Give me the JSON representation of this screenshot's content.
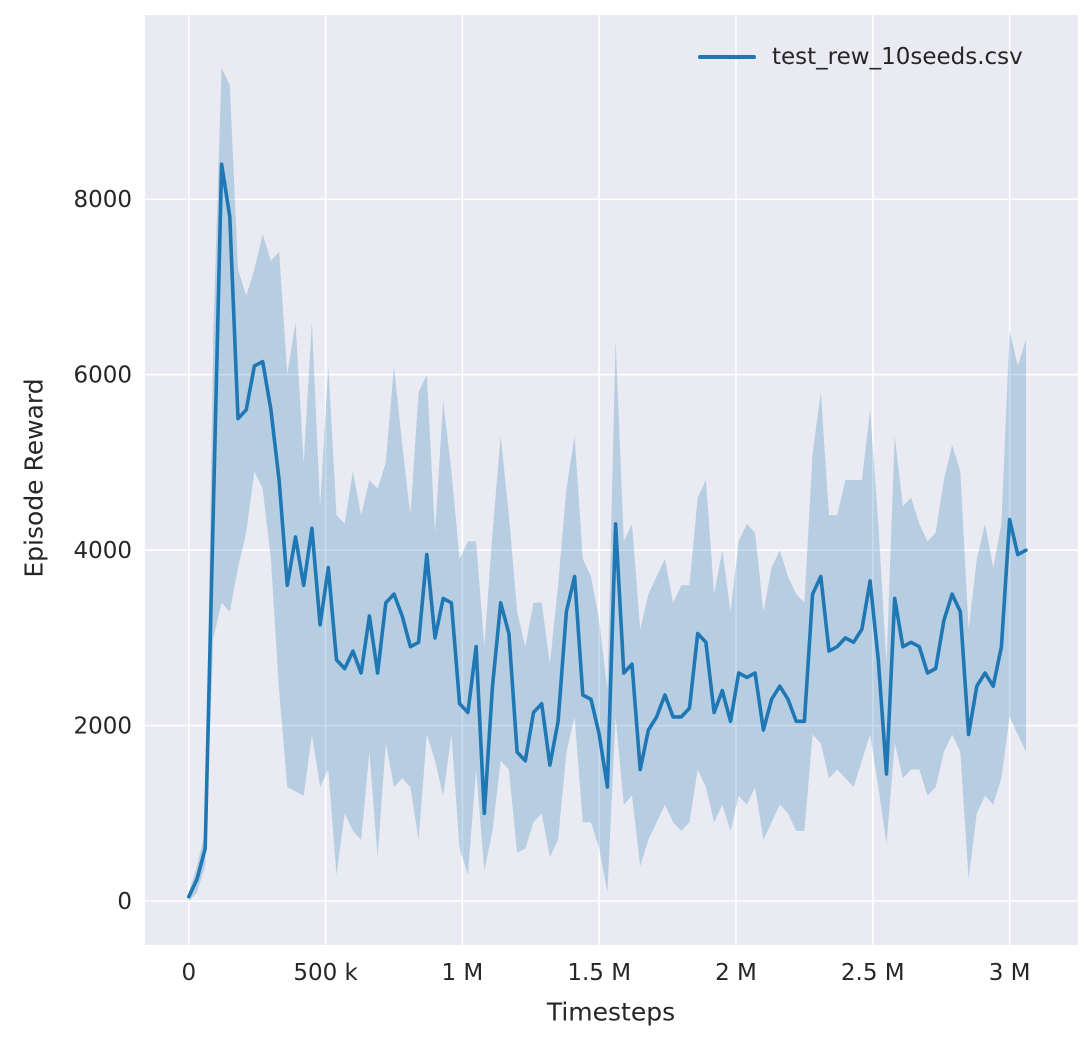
{
  "figure": {
    "background": "#ffffff",
    "plot_background": "#eaeaf2",
    "grid_color": "#ffffff",
    "line_color": "#1f77b4",
    "band_color": "rgba(31,119,180,0.25)",
    "tick_color": "#262626"
  },
  "chart_data": {
    "type": "line",
    "title": "",
    "xlabel": "Timesteps",
    "ylabel": "Episode Reward",
    "grid": true,
    "legend_position": "upper right",
    "legend": [
      {
        "label": "test_rew_10seeds.csv",
        "color": "#1f77b4"
      }
    ],
    "xlim": [
      -160000,
      3250000
    ],
    "ylim": [
      -500,
      10100
    ],
    "xticks": {
      "values": [
        0,
        500000,
        1000000,
        1500000,
        2000000,
        2500000,
        3000000
      ],
      "labels": [
        "0",
        "500 k",
        "1 M",
        "1.5 M",
        "2 M",
        "2.5 M",
        "3 M"
      ]
    },
    "yticks": {
      "values": [
        0,
        2000,
        4000,
        6000,
        8000
      ],
      "labels": [
        "0",
        "2000",
        "4000",
        "6000",
        "8000"
      ]
    },
    "x": [
      0,
      30000,
      60000,
      90000,
      120000,
      150000,
      180000,
      210000,
      240000,
      270000,
      300000,
      330000,
      360000,
      390000,
      420000,
      450000,
      480000,
      510000,
      540000,
      570000,
      600000,
      630000,
      660000,
      690000,
      720000,
      750000,
      780000,
      810000,
      840000,
      870000,
      900000,
      930000,
      960000,
      990000,
      1020000,
      1050000,
      1080000,
      1110000,
      1140000,
      1170000,
      1200000,
      1230000,
      1260000,
      1290000,
      1320000,
      1350000,
      1380000,
      1410000,
      1440000,
      1470000,
      1500000,
      1530000,
      1560000,
      1590000,
      1620000,
      1650000,
      1680000,
      1710000,
      1740000,
      1770000,
      1800000,
      1830000,
      1860000,
      1890000,
      1920000,
      1950000,
      1980000,
      2010000,
      2040000,
      2070000,
      2100000,
      2130000,
      2160000,
      2190000,
      2220000,
      2250000,
      2280000,
      2310000,
      2340000,
      2370000,
      2400000,
      2430000,
      2460000,
      2490000,
      2520000,
      2550000,
      2580000,
      2610000,
      2640000,
      2670000,
      2700000,
      2730000,
      2760000,
      2790000,
      2820000,
      2850000,
      2880000,
      2910000,
      2940000,
      2970000,
      3000000,
      3030000,
      3060000
    ],
    "series": [
      {
        "name": "test_rew_10seeds.csv",
        "mean": [
          50,
          250,
          600,
          4500,
          8400,
          7800,
          5500,
          5600,
          6100,
          6150,
          5600,
          4800,
          3600,
          4150,
          3600,
          4250,
          3150,
          3800,
          2750,
          2650,
          2850,
          2600,
          3250,
          2600,
          3400,
          3500,
          3250,
          2900,
          2950,
          3950,
          3000,
          3450,
          3400,
          2250,
          2150,
          2900,
          1000,
          2450,
          3400,
          3050,
          1700,
          1600,
          2150,
          2250,
          1550,
          2050,
          3300,
          3700,
          2350,
          2300,
          1900,
          1300,
          4300,
          2600,
          2700,
          1500,
          1950,
          2100,
          2350,
          2100,
          2100,
          2200,
          3050,
          2950,
          2150,
          2400,
          2050,
          2600,
          2550,
          2600,
          1950,
          2300,
          2450,
          2300,
          2050,
          2050,
          3500,
          3700,
          2850,
          2900,
          3000,
          2950,
          3100,
          3650,
          2750,
          1450,
          3450,
          2900,
          2950,
          2900,
          2600,
          2650,
          3200,
          3500,
          3300,
          1900,
          2450,
          2600,
          2450,
          2900,
          4350,
          3950,
          4000
        ],
        "band_upper": [
          100,
          400,
          800,
          6500,
          9500,
          9300,
          7200,
          6900,
          7200,
          7600,
          7300,
          7400,
          6000,
          6600,
          5000,
          6600,
          4500,
          6100,
          4400,
          4300,
          4900,
          4400,
          4800,
          4700,
          5000,
          6100,
          5200,
          4400,
          5800,
          6000,
          4200,
          5700,
          4900,
          3900,
          4100,
          4100,
          2900,
          4200,
          5300,
          4400,
          3300,
          2900,
          3400,
          3400,
          2700,
          3600,
          4700,
          5300,
          3900,
          3700,
          3200,
          2400,
          6400,
          4100,
          4300,
          3100,
          3500,
          3700,
          3900,
          3400,
          3600,
          3600,
          4600,
          4800,
          3500,
          4000,
          3300,
          4100,
          4300,
          4200,
          3300,
          3800,
          4000,
          3700,
          3500,
          3400,
          5100,
          5800,
          4400,
          4400,
          4800,
          4800,
          4800,
          5600,
          4300,
          2700,
          5300,
          4500,
          4600,
          4300,
          4100,
          4200,
          4800,
          5200,
          4900,
          3100,
          3900,
          4300,
          3800,
          4300,
          6500,
          6100,
          6400
        ],
        "band_lower": [
          0,
          100,
          400,
          3000,
          3400,
          3300,
          3800,
          4200,
          4900,
          4700,
          3900,
          2400,
          1300,
          1250,
          1200,
          1900,
          1300,
          1500,
          300,
          1000,
          800,
          700,
          1700,
          500,
          1800,
          1300,
          1400,
          1300,
          700,
          1900,
          1600,
          1200,
          1900,
          600,
          300,
          1500,
          350,
          800,
          1600,
          1500,
          550,
          600,
          900,
          1000,
          500,
          700,
          1700,
          2100,
          900,
          900,
          600,
          100,
          2100,
          1100,
          1200,
          400,
          700,
          900,
          1100,
          900,
          800,
          900,
          1500,
          1300,
          900,
          1100,
          800,
          1200,
          1100,
          1300,
          700,
          900,
          1100,
          1000,
          800,
          800,
          1900,
          1800,
          1400,
          1500,
          1400,
          1300,
          1600,
          1900,
          1300,
          650,
          1800,
          1400,
          1500,
          1500,
          1200,
          1300,
          1700,
          1900,
          1700,
          250,
          1000,
          1200,
          1100,
          1400,
          2100,
          1900,
          1700
        ]
      }
    ]
  }
}
